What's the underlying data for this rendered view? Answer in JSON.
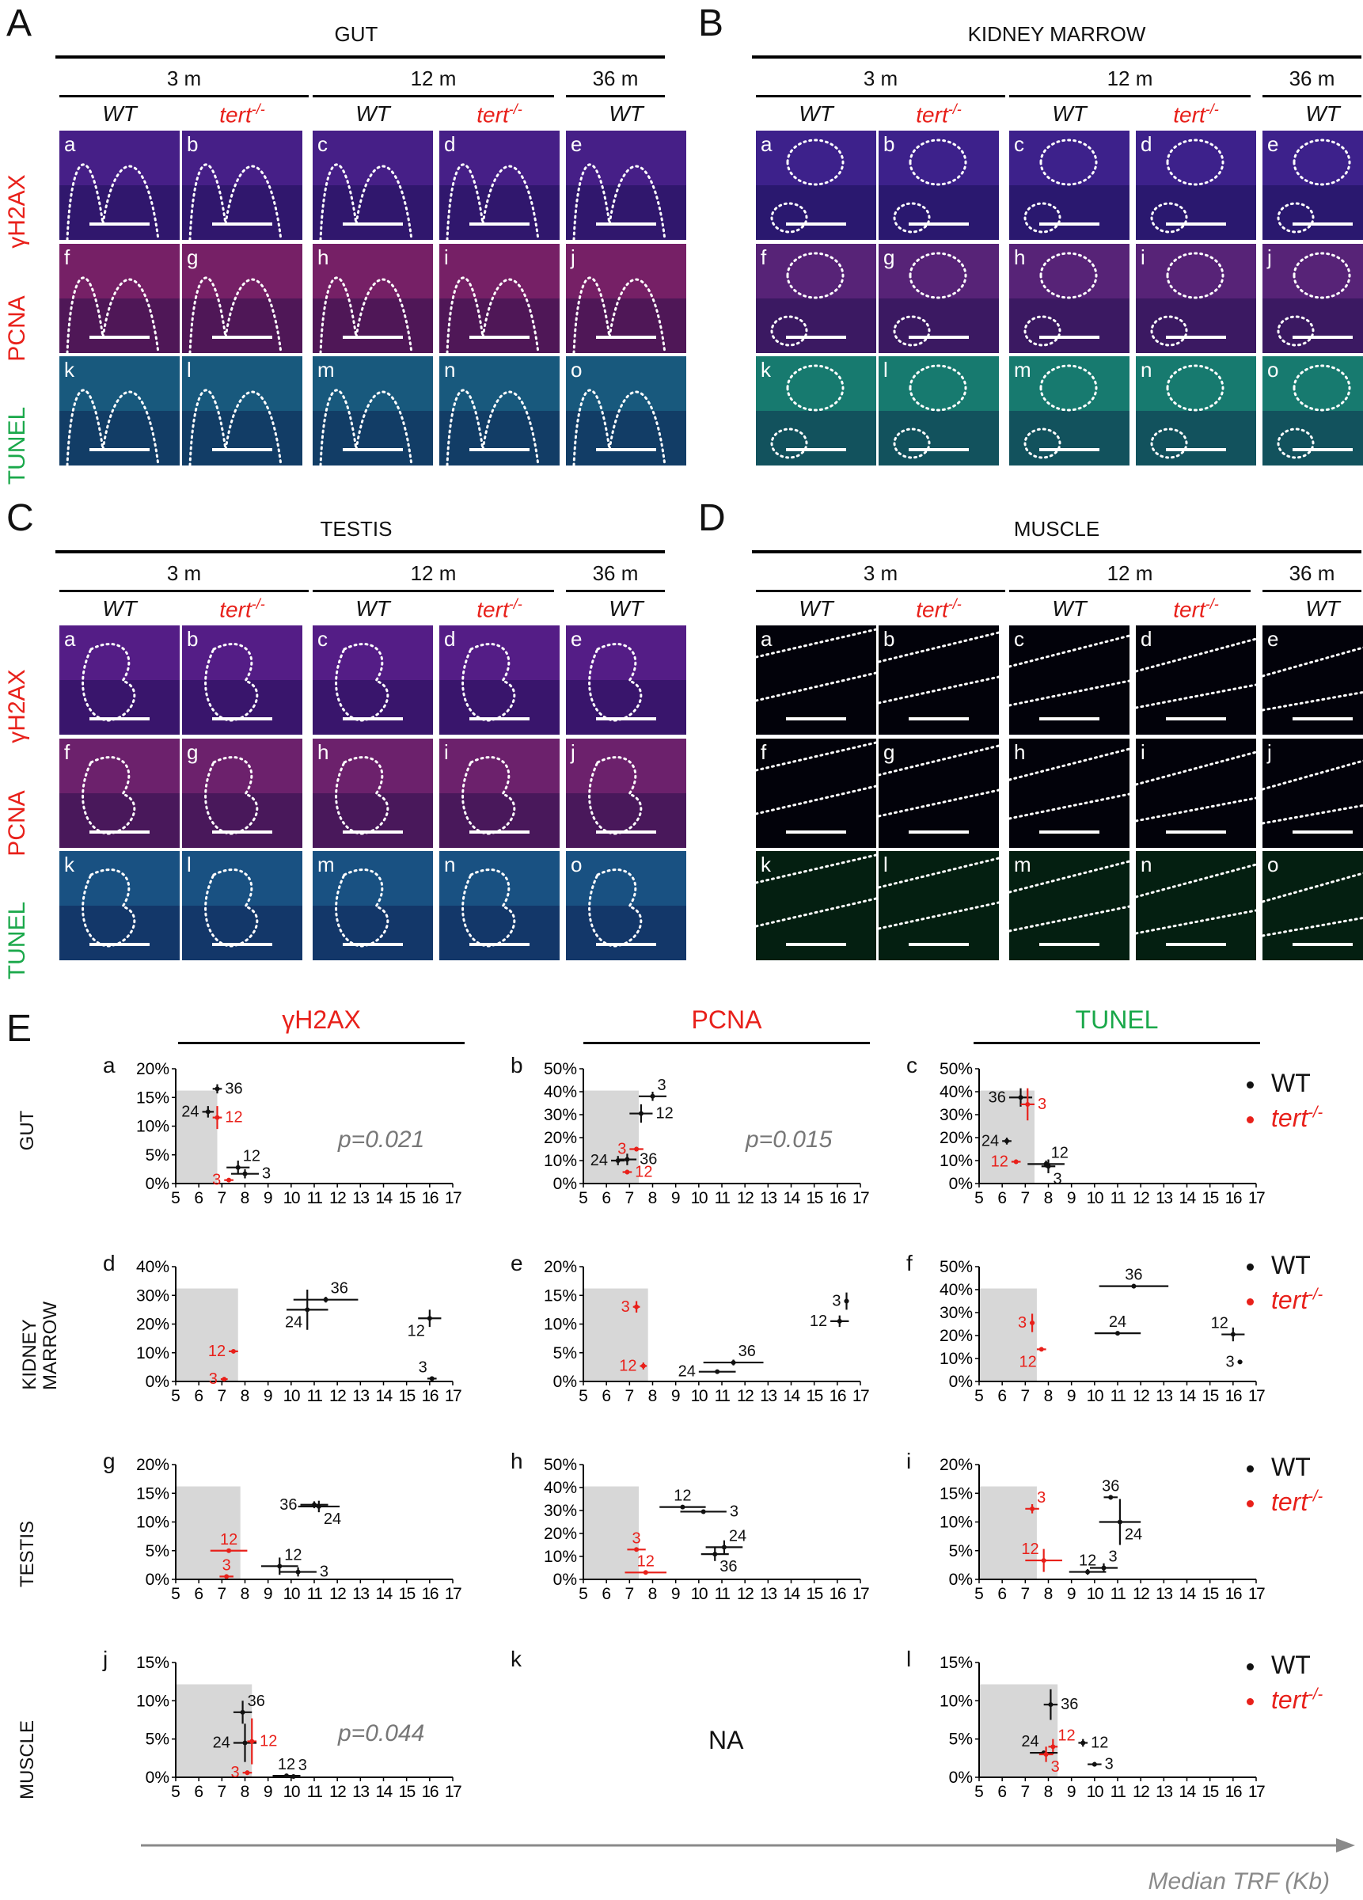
{
  "colors": {
    "wt": "#111111",
    "tert": "#e8201a",
    "red_label": "#e8201a",
    "green_label": "#1aa84a",
    "shade": "#d7d7d7",
    "arrow": "#8a8a8a"
  },
  "micro_panels": [
    {
      "letter": "A",
      "title": "GUT",
      "ages": [
        "3 m",
        "12 m",
        "36 m"
      ],
      "genotypes": [
        "WT",
        "tert",
        "WT",
        "tert",
        "WT"
      ],
      "rows": [
        "γH2AX",
        "PCNA",
        "TUNEL"
      ],
      "tiles": [
        [
          "a",
          "b",
          "c",
          "d",
          "e"
        ],
        [
          "f",
          "g",
          "h",
          "i",
          "j"
        ],
        [
          "k",
          "l",
          "m",
          "n",
          "o"
        ]
      ]
    },
    {
      "letter": "B",
      "title": "KIDNEY MARROW",
      "ages": [
        "3 m",
        "12 m",
        "36 m"
      ],
      "genotypes": [
        "WT",
        "tert",
        "WT",
        "tert",
        "WT"
      ],
      "rows": [],
      "tiles": [
        [
          "a",
          "b",
          "c",
          "d",
          "e"
        ],
        [
          "f",
          "g",
          "h",
          "i",
          "j"
        ],
        [
          "k",
          "l",
          "m",
          "n",
          "o"
        ]
      ]
    },
    {
      "letter": "C",
      "title": "TESTIS",
      "ages": [
        "3 m",
        "12 m",
        "36 m"
      ],
      "genotypes": [
        "WT",
        "tert",
        "WT",
        "tert",
        "WT"
      ],
      "rows": [
        "γH2AX",
        "PCNA",
        "TUNEL"
      ],
      "tiles": [
        [
          "a",
          "b",
          "c",
          "d",
          "e"
        ],
        [
          "f",
          "g",
          "h",
          "i",
          "j"
        ],
        [
          "k",
          "l",
          "m",
          "n",
          "o"
        ]
      ]
    },
    {
      "letter": "D",
      "title": "MUSCLE",
      "ages": [
        "3 m",
        "12 m",
        "36 m"
      ],
      "genotypes": [
        "WT",
        "tert",
        "WT",
        "tert",
        "WT"
      ],
      "rows": [],
      "tiles": [
        [
          "a",
          "b",
          "c",
          "d",
          "e"
        ],
        [
          "f",
          "g",
          "h",
          "i",
          "j"
        ],
        [
          "k",
          "l",
          "m",
          "n",
          "o"
        ]
      ]
    }
  ],
  "genotype_sup": "-/-",
  "section_E": {
    "letter": "E",
    "columns": [
      "γH2AX",
      "PCNA",
      "TUNEL"
    ],
    "rows": [
      "GUT",
      "KIDNEY MARROW",
      "TESTIS",
      "MUSCLE"
    ],
    "legend": {
      "wt": "WT",
      "tert": "tert",
      "sup": "-/-"
    },
    "x_axis_label": "Median TRF (Kb)",
    "na_label": "NA"
  },
  "chart_data": [
    {
      "id": "a",
      "type": "scatter",
      "row": "GUT",
      "col": "γH2AX",
      "xlim": [
        5,
        17
      ],
      "ylim": [
        0,
        20
      ],
      "yticks": [
        0,
        5,
        10,
        15,
        20
      ],
      "shade": [
        5,
        6.8
      ],
      "pvalue": "p=0.021",
      "points": [
        {
          "g": "WT",
          "label": "36",
          "x": 6.8,
          "y": 16.5,
          "ex": 0.2,
          "ey": 0.8,
          "lp": "r"
        },
        {
          "g": "WT",
          "label": "24",
          "x": 6.4,
          "y": 12.5,
          "ex": 0.25,
          "ey": 1.0,
          "lp": "l"
        },
        {
          "g": "tert",
          "label": "12",
          "x": 6.8,
          "y": 11.5,
          "ex": 0.2,
          "ey": 2.0,
          "lp": "r"
        },
        {
          "g": "WT",
          "label": "12",
          "x": 7.7,
          "y": 2.8,
          "ex": 0.5,
          "ey": 1.2,
          "lp": "tr"
        },
        {
          "g": "WT",
          "label": "3",
          "x": 8.0,
          "y": 1.7,
          "ex": 0.6,
          "ey": 0.8,
          "lp": "r"
        },
        {
          "g": "tert",
          "label": "3",
          "x": 7.3,
          "y": 0.6,
          "ex": 0.2,
          "ey": 0.3,
          "lp": "l"
        }
      ]
    },
    {
      "id": "b",
      "type": "scatter",
      "row": "GUT",
      "col": "PCNA",
      "xlim": [
        5,
        17
      ],
      "ylim": [
        0,
        50
      ],
      "yticks": [
        0,
        10,
        20,
        30,
        40,
        50
      ],
      "shade": [
        5,
        7.4
      ],
      "pvalue": "p=0.015",
      "points": [
        {
          "g": "WT",
          "label": "3",
          "x": 8.0,
          "y": 38,
          "ex": 0.6,
          "ey": 2,
          "lp": "tr"
        },
        {
          "g": "WT",
          "label": "12",
          "x": 7.5,
          "y": 30.5,
          "ex": 0.5,
          "ey": 4,
          "lp": "r"
        },
        {
          "g": "tert",
          "label": "3",
          "x": 7.3,
          "y": 15,
          "ex": 0.3,
          "ey": 1,
          "lp": "l"
        },
        {
          "g": "WT",
          "label": "24",
          "x": 6.5,
          "y": 10,
          "ex": 0.3,
          "ey": 2,
          "lp": "l"
        },
        {
          "g": "WT",
          "label": "36",
          "x": 6.9,
          "y": 10.5,
          "ex": 0.4,
          "ey": 2.5,
          "lp": "r"
        },
        {
          "g": "tert",
          "label": "12",
          "x": 6.9,
          "y": 5,
          "ex": 0.2,
          "ey": 1,
          "lp": "r"
        }
      ]
    },
    {
      "id": "c",
      "type": "scatter",
      "row": "GUT",
      "col": "TUNEL",
      "xlim": [
        5,
        17
      ],
      "ylim": [
        0,
        50
      ],
      "yticks": [
        0,
        10,
        20,
        30,
        40,
        50
      ],
      "shade": [
        5,
        7.4
      ],
      "pvalue": "",
      "points": [
        {
          "g": "WT",
          "label": "36",
          "x": 6.8,
          "y": 37.5,
          "ex": 0.5,
          "ey": 4,
          "lp": "l"
        },
        {
          "g": "tert",
          "label": "3",
          "x": 7.1,
          "y": 34.5,
          "ex": 0.3,
          "ey": 7,
          "lp": "r"
        },
        {
          "g": "WT",
          "label": "24",
          "x": 6.2,
          "y": 18.5,
          "ex": 0.2,
          "ey": 1.5,
          "lp": "l"
        },
        {
          "g": "WT",
          "label": "12",
          "x": 7.9,
          "y": 8.5,
          "ex": 0.8,
          "ey": 1.5,
          "lp": "tr"
        },
        {
          "g": "tert",
          "label": "12",
          "x": 6.6,
          "y": 9.5,
          "ex": 0.2,
          "ey": 1,
          "lp": "l"
        },
        {
          "g": "WT",
          "label": "3",
          "x": 8.0,
          "y": 7.5,
          "ex": 0.3,
          "ey": 3,
          "lp": "br"
        }
      ]
    },
    {
      "id": "d",
      "type": "scatter",
      "row": "KIDNEY MARROW",
      "col": "γH2AX",
      "xlim": [
        5,
        17
      ],
      "ylim": [
        0,
        40
      ],
      "yticks": [
        0,
        10,
        20,
        30,
        40
      ],
      "shade": [
        5,
        7.7
      ],
      "pvalue": "",
      "points": [
        {
          "g": "WT",
          "label": "36",
          "x": 11.5,
          "y": 28.5,
          "ex": 1.4,
          "ey": 1,
          "lp": "tr"
        },
        {
          "g": "WT",
          "label": "24",
          "x": 10.7,
          "y": 25,
          "ex": 0.9,
          "ey": 7,
          "lp": "bl"
        },
        {
          "g": "WT",
          "label": "12",
          "x": 16,
          "y": 22,
          "ex": 0.5,
          "ey": 3,
          "lp": "bl"
        },
        {
          "g": "tert",
          "label": "12",
          "x": 7.5,
          "y": 10.5,
          "ex": 0.2,
          "ey": 0.5,
          "lp": "l"
        },
        {
          "g": "tert",
          "label": "3",
          "x": 7.1,
          "y": 0.8,
          "ex": 0.15,
          "ey": 0.5,
          "lp": "l"
        },
        {
          "g": "WT",
          "label": "3",
          "x": 16.1,
          "y": 1,
          "ex": 0.2,
          "ey": 0.3,
          "lp": "tl"
        }
      ]
    },
    {
      "id": "e",
      "type": "scatter",
      "row": "KIDNEY MARROW",
      "col": "PCNA",
      "xlim": [
        5,
        17
      ],
      "ylim": [
        0,
        20
      ],
      "yticks": [
        0,
        5,
        10,
        15,
        20
      ],
      "shade": [
        5,
        7.8
      ],
      "pvalue": "",
      "points": [
        {
          "g": "tert",
          "label": "3",
          "x": 7.3,
          "y": 13,
          "ex": 0.15,
          "ey": 1,
          "lp": "l"
        },
        {
          "g": "tert",
          "label": "12",
          "x": 7.6,
          "y": 2.7,
          "ex": 0.15,
          "ey": 0.6,
          "lp": "l"
        },
        {
          "g": "WT",
          "label": "3",
          "x": 16.4,
          "y": 14,
          "ex": 0.1,
          "ey": 1.5,
          "lp": "l"
        },
        {
          "g": "WT",
          "label": "12",
          "x": 16.1,
          "y": 10.5,
          "ex": 0.4,
          "ey": 1,
          "lp": "l"
        },
        {
          "g": "WT",
          "label": "36",
          "x": 11.5,
          "y": 3.3,
          "ex": 1.3,
          "ey": 0.5,
          "lp": "tr"
        },
        {
          "g": "WT",
          "label": "24",
          "x": 10.8,
          "y": 1.7,
          "ex": 0.8,
          "ey": 0.3,
          "lp": "l"
        }
      ]
    },
    {
      "id": "f",
      "type": "scatter",
      "row": "KIDNEY MARROW",
      "col": "TUNEL",
      "xlim": [
        5,
        17
      ],
      "ylim": [
        0,
        50
      ],
      "yticks": [
        0,
        10,
        20,
        30,
        40,
        50
      ],
      "shade": [
        5,
        7.5
      ],
      "pvalue": "",
      "points": [
        {
          "g": "WT",
          "label": "36",
          "x": 11.7,
          "y": 41.5,
          "ex": 1.5,
          "ey": 1,
          "lp": "t"
        },
        {
          "g": "tert",
          "label": "3",
          "x": 7.3,
          "y": 25.5,
          "ex": 0.1,
          "ey": 4,
          "lp": "l"
        },
        {
          "g": "WT",
          "label": "24",
          "x": 11.0,
          "y": 21,
          "ex": 1.0,
          "ey": 0.5,
          "lp": "t"
        },
        {
          "g": "WT",
          "label": "12",
          "x": 16.0,
          "y": 20.5,
          "ex": 0.5,
          "ey": 3,
          "lp": "tl"
        },
        {
          "g": "tert",
          "label": "12",
          "x": 7.7,
          "y": 14,
          "ex": 0.2,
          "ey": 0.5,
          "lp": "bl"
        },
        {
          "g": "WT",
          "label": "3",
          "x": 16.3,
          "y": 8.5,
          "ex": 0.1,
          "ey": 0.5,
          "lp": "l"
        }
      ]
    },
    {
      "id": "g",
      "type": "scatter",
      "row": "TESTIS",
      "col": "γH2AX",
      "xlim": [
        5,
        17
      ],
      "ylim": [
        0,
        20
      ],
      "yticks": [
        0,
        5,
        10,
        15,
        20
      ],
      "shade": [
        5,
        7.8
      ],
      "pvalue": "",
      "points": [
        {
          "g": "WT",
          "label": "36",
          "x": 11.0,
          "y": 13,
          "ex": 0.6,
          "ey": 0.6,
          "lp": "l"
        },
        {
          "g": "WT",
          "label": "24",
          "x": 11.2,
          "y": 12.7,
          "ex": 0.9,
          "ey": 1,
          "lp": "br"
        },
        {
          "g": "tert",
          "label": "12",
          "x": 7.3,
          "y": 5,
          "ex": 0.8,
          "ey": 0.2,
          "lp": "t"
        },
        {
          "g": "WT",
          "label": "12",
          "x": 9.5,
          "y": 2.3,
          "ex": 0.8,
          "ey": 1.5,
          "lp": "tr"
        },
        {
          "g": "WT",
          "label": "3",
          "x": 10.3,
          "y": 1.3,
          "ex": 0.8,
          "ey": 0.8,
          "lp": "r"
        },
        {
          "g": "tert",
          "label": "3",
          "x": 7.2,
          "y": 0.5,
          "ex": 0.3,
          "ey": 0.3,
          "lp": "t"
        }
      ]
    },
    {
      "id": "h",
      "type": "scatter",
      "row": "TESTIS",
      "col": "PCNA",
      "xlim": [
        5,
        17
      ],
      "ylim": [
        0,
        50
      ],
      "yticks": [
        0,
        10,
        20,
        30,
        40,
        50
      ],
      "shade": [
        5,
        7.4
      ],
      "pvalue": "",
      "points": [
        {
          "g": "WT",
          "label": "12",
          "x": 9.3,
          "y": 31.5,
          "ex": 1.0,
          "ey": 0.5,
          "lp": "t"
        },
        {
          "g": "WT",
          "label": "3",
          "x": 10.2,
          "y": 29.5,
          "ex": 1.0,
          "ey": 0.5,
          "lp": "r"
        },
        {
          "g": "WT",
          "label": "24",
          "x": 11.1,
          "y": 14,
          "ex": 0.8,
          "ey": 3,
          "lp": "tr"
        },
        {
          "g": "WT",
          "label": "36",
          "x": 10.7,
          "y": 11,
          "ex": 0.6,
          "ey": 3,
          "lp": "br"
        },
        {
          "g": "tert",
          "label": "3",
          "x": 7.3,
          "y": 13,
          "ex": 0.4,
          "ey": 0.3,
          "lp": "t"
        },
        {
          "g": "tert",
          "label": "12",
          "x": 7.7,
          "y": 3,
          "ex": 0.9,
          "ey": 0.3,
          "lp": "t"
        }
      ]
    },
    {
      "id": "i",
      "type": "scatter",
      "row": "TESTIS",
      "col": "TUNEL",
      "xlim": [
        5,
        17
      ],
      "ylim": [
        0,
        20
      ],
      "yticks": [
        0,
        5,
        10,
        15,
        20
      ],
      "shade": [
        5,
        7.5
      ],
      "pvalue": "",
      "points": [
        {
          "g": "WT",
          "label": "36",
          "x": 10.7,
          "y": 14.3,
          "ex": 0.3,
          "ey": 0.4,
          "lp": "t"
        },
        {
          "g": "tert",
          "label": "3",
          "x": 7.3,
          "y": 12.3,
          "ex": 0.3,
          "ey": 0.8,
          "lp": "tr"
        },
        {
          "g": "WT",
          "label": "24",
          "x": 11.1,
          "y": 10,
          "ex": 0.9,
          "ey": 4,
          "lp": "br"
        },
        {
          "g": "tert",
          "label": "12",
          "x": 7.8,
          "y": 3.3,
          "ex": 0.8,
          "ey": 2,
          "lp": "tl"
        },
        {
          "g": "WT",
          "label": "12",
          "x": 9.7,
          "y": 1.3,
          "ex": 0.8,
          "ey": 0.5,
          "lp": "t"
        },
        {
          "g": "WT",
          "label": "3",
          "x": 10.4,
          "y": 2,
          "ex": 0.6,
          "ey": 0.8,
          "lp": "tr"
        }
      ]
    },
    {
      "id": "j",
      "type": "scatter",
      "row": "MUSCLE",
      "col": "γH2AX",
      "xlim": [
        5,
        17
      ],
      "ylim": [
        0,
        15
      ],
      "yticks": [
        0,
        5,
        10,
        15
      ],
      "shade": [
        5,
        8.3
      ],
      "pvalue": "p=0.044",
      "points": [
        {
          "g": "WT",
          "label": "36",
          "x": 7.9,
          "y": 8.5,
          "ex": 0.4,
          "ey": 1.5,
          "lp": "tr"
        },
        {
          "g": "WT",
          "label": "24",
          "x": 8.0,
          "y": 4.5,
          "ex": 0.5,
          "ey": 2.5,
          "lp": "l"
        },
        {
          "g": "tert",
          "label": "12",
          "x": 8.3,
          "y": 4.7,
          "ex": 0.2,
          "ey": 3,
          "lp": "r"
        },
        {
          "g": "tert",
          "label": "3",
          "x": 8.1,
          "y": 0.6,
          "ex": 0.2,
          "ey": 0.3,
          "lp": "l"
        },
        {
          "g": "WT",
          "label": "12",
          "x": 9.8,
          "y": 0.2,
          "ex": 0.6,
          "ey": 0.2,
          "lp": "t"
        },
        {
          "g": "WT",
          "label": "3",
          "x": 10.1,
          "y": 0.1,
          "ex": 0.3,
          "ey": 0.1,
          "lp": "tr"
        }
      ]
    },
    {
      "id": "k",
      "type": "scatter",
      "row": "MUSCLE",
      "col": "PCNA",
      "na": true,
      "points": []
    },
    {
      "id": "l",
      "type": "scatter",
      "row": "MUSCLE",
      "col": "TUNEL",
      "xlim": [
        5,
        17
      ],
      "ylim": [
        0,
        15
      ],
      "yticks": [
        0,
        5,
        10,
        15
      ],
      "shade": [
        5,
        8.4
      ],
      "pvalue": "",
      "points": [
        {
          "g": "WT",
          "label": "36",
          "x": 8.1,
          "y": 9.5,
          "ex": 0.3,
          "ey": 2,
          "lp": "r"
        },
        {
          "g": "tert",
          "label": "12",
          "x": 8.2,
          "y": 4,
          "ex": 0.2,
          "ey": 1,
          "lp": "tr"
        },
        {
          "g": "WT",
          "label": "12",
          "x": 9.5,
          "y": 4.5,
          "ex": 0.2,
          "ey": 0.5,
          "lp": "r"
        },
        {
          "g": "WT",
          "label": "24",
          "x": 7.8,
          "y": 3.2,
          "ex": 0.6,
          "ey": 0.2,
          "lp": "tl"
        },
        {
          "g": "tert",
          "label": "3",
          "x": 7.9,
          "y": 3,
          "ex": 0.3,
          "ey": 1,
          "lp": "br"
        },
        {
          "g": "WT",
          "label": "3",
          "x": 10.0,
          "y": 1.7,
          "ex": 0.3,
          "ey": 0.3,
          "lp": "r"
        }
      ]
    }
  ]
}
